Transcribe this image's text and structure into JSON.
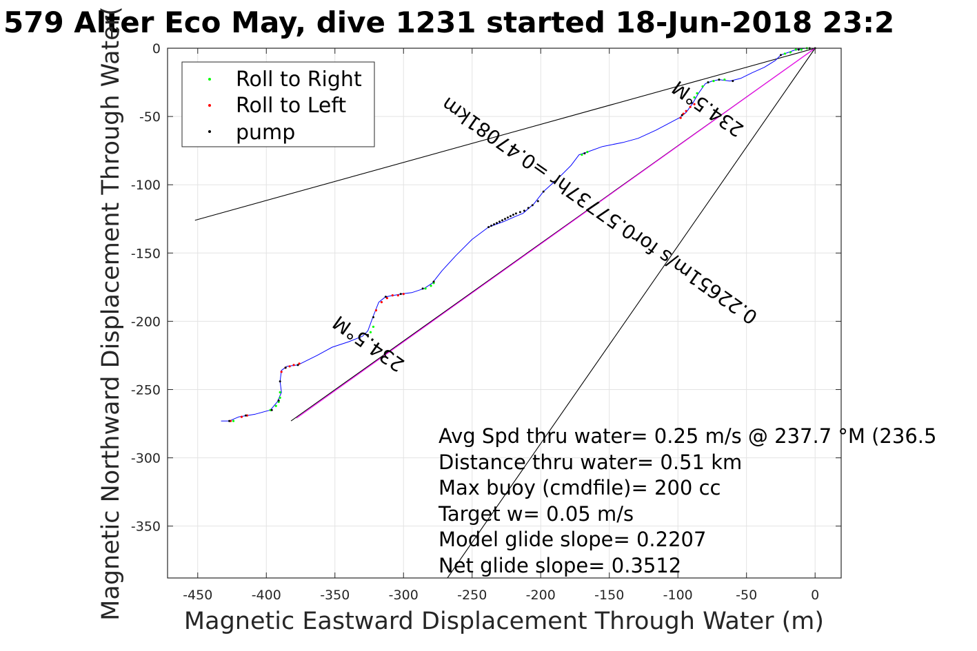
{
  "chart_data": {
    "type": "scatter",
    "title": "579 Alter Eco May, dive 1231 started 18-Jun-2018 23:2",
    "xlabel": "Magnetic Eastward Displacement Through Water (m)",
    "ylabel": "Magnetic Northward Displacement Through Water(",
    "xlim": [
      -472,
      19
    ],
    "ylim": [
      -388,
      0
    ],
    "xticks": [
      -450,
      -400,
      -350,
      -300,
      -250,
      -200,
      -150,
      -100,
      -50,
      0
    ],
    "yticks": [
      0,
      -50,
      -100,
      -150,
      -200,
      -250,
      -300,
      -350
    ],
    "grid": true,
    "legend": {
      "placement": "top-left",
      "entries": [
        {
          "name": "Roll to Right",
          "color": "#00ff00"
        },
        {
          "name": "Roll to Left",
          "color": "#ff0000"
        },
        {
          "name": "pump",
          "color": "#000000"
        }
      ]
    },
    "track": {
      "name": "track",
      "color": "#0000ff",
      "points": [
        [
          -433,
          -273
        ],
        [
          -427,
          -273
        ],
        [
          -420,
          -270
        ],
        [
          -408,
          -268
        ],
        [
          -397,
          -265
        ],
        [
          -392,
          -259
        ],
        [
          -389,
          -252
        ],
        [
          -390,
          -244
        ],
        [
          -389,
          -236
        ],
        [
          -385,
          -233
        ],
        [
          -377,
          -232
        ],
        [
          -375,
          -231
        ],
        [
          -363,
          -225
        ],
        [
          -352,
          -219
        ],
        [
          -340,
          -215
        ],
        [
          -330,
          -211
        ],
        [
          -326,
          -207
        ],
        [
          -322,
          -196
        ],
        [
          -318,
          -186
        ],
        [
          -313,
          -182
        ],
        [
          -307,
          -181
        ],
        [
          -302,
          -180
        ],
        [
          -294,
          -179
        ],
        [
          -285,
          -176
        ],
        [
          -279,
          -172
        ],
        [
          -272,
          -163
        ],
        [
          -262,
          -152
        ],
        [
          -250,
          -140
        ],
        [
          -238,
          -131
        ],
        [
          -227,
          -127
        ],
        [
          -218,
          -123
        ],
        [
          -213,
          -121
        ],
        [
          -205,
          -114
        ],
        [
          -198,
          -105
        ],
        [
          -187,
          -95
        ],
        [
          -178,
          -86
        ],
        [
          -172,
          -78
        ],
        [
          -166,
          -76
        ],
        [
          -155,
          -72
        ],
        [
          -140,
          -69
        ],
        [
          -129,
          -66
        ],
        [
          -116,
          -60
        ],
        [
          -99,
          -51
        ],
        [
          -94,
          -47
        ],
        [
          -89,
          -40
        ],
        [
          -85,
          -33
        ],
        [
          -80,
          -26
        ],
        [
          -75,
          -24
        ],
        [
          -70,
          -23
        ],
        [
          -62,
          -24
        ],
        [
          -54,
          -22
        ],
        [
          -46,
          -18
        ],
        [
          -37,
          -14
        ],
        [
          -29,
          -9
        ],
        [
          -25,
          -5
        ],
        [
          -22,
          -4
        ],
        [
          -14,
          -1
        ],
        [
          -7,
          0
        ],
        [
          0,
          0
        ]
      ]
    },
    "roll_right": [
      [
        -424,
        -273
      ],
      [
        -397,
        -265
      ],
      [
        -393,
        -262
      ],
      [
        -391,
        -259
      ],
      [
        -390,
        -256
      ],
      [
        -390,
        -252
      ],
      [
        -324,
        -208
      ],
      [
        -322,
        -204
      ],
      [
        -284,
        -176
      ],
      [
        -280,
        -174
      ],
      [
        -278,
        -172
      ],
      [
        -170,
        -78
      ],
      [
        -166,
        -76
      ],
      [
        -88,
        -36
      ],
      [
        -86,
        -33
      ],
      [
        -82,
        -28
      ],
      [
        -78,
        -25
      ],
      [
        -74,
        -24
      ],
      [
        -70,
        -23
      ],
      [
        -66,
        -23
      ],
      [
        -22,
        -4
      ],
      [
        -18,
        -3
      ],
      [
        -14,
        -1
      ],
      [
        -10,
        -1
      ],
      [
        -6,
        0
      ]
    ],
    "roll_left": [
      [
        -426,
        -273
      ],
      [
        -418,
        -270
      ],
      [
        -414,
        -269
      ],
      [
        -389,
        -237
      ],
      [
        -386,
        -234
      ],
      [
        -383,
        -233
      ],
      [
        -380,
        -232
      ],
      [
        -376,
        -231
      ],
      [
        -320,
        -192
      ],
      [
        -316,
        -186
      ],
      [
        -312,
        -183
      ],
      [
        -308,
        -181
      ],
      [
        -304,
        -181
      ],
      [
        -300,
        -180
      ],
      [
        -98,
        -51
      ],
      [
        -96,
        -48
      ],
      [
        -94,
        -46
      ],
      [
        -91,
        -43
      ],
      [
        -88,
        -41
      ]
    ],
    "pump": [
      [
        -427,
        -273
      ],
      [
        -415,
        -269
      ],
      [
        -396,
        -265
      ],
      [
        -391,
        -258
      ],
      [
        -390,
        -244
      ],
      [
        -386,
        -234
      ],
      [
        -377,
        -232
      ],
      [
        -326,
        -210
      ],
      [
        -322,
        -197
      ],
      [
        -313,
        -182
      ],
      [
        -302,
        -180
      ],
      [
        -286,
        -176
      ],
      [
        -278,
        -171
      ],
      [
        -238,
        -131
      ],
      [
        -236,
        -130
      ],
      [
        -234,
        -129
      ],
      [
        -232,
        -128
      ],
      [
        -230,
        -127
      ],
      [
        -228,
        -126
      ],
      [
        -226,
        -125
      ],
      [
        -224,
        -124
      ],
      [
        -222,
        -123
      ],
      [
        -220,
        -122
      ],
      [
        -218,
        -121
      ],
      [
        -215,
        -120
      ],
      [
        -212,
        -119
      ],
      [
        -209,
        -117
      ],
      [
        -206,
        -115
      ],
      [
        -202,
        -112
      ],
      [
        -198,
        -105
      ],
      [
        -168,
        -77
      ],
      [
        -97,
        -49
      ],
      [
        -90,
        -40
      ],
      [
        -78,
        -25
      ],
      [
        -70,
        -23
      ],
      [
        -60,
        -24
      ],
      [
        -25,
        -5
      ],
      [
        -12,
        -1
      ],
      [
        -4,
        0
      ],
      [
        0,
        0
      ]
    ],
    "lines": [
      {
        "name": "upper-heading-line",
        "color": "#000000",
        "x": [
          -452,
          0
        ],
        "y": [
          -126,
          0
        ]
      },
      {
        "name": "lower-heading-line",
        "color": "#000000",
        "x": [
          -268,
          0
        ],
        "y": [
          -388,
          0
        ]
      },
      {
        "name": "net-displacement-line",
        "color": "#000000",
        "x": [
          -382,
          0
        ],
        "y": [
          -273,
          0
        ]
      },
      {
        "name": "model-displacement-line",
        "color": "#ff00ff",
        "x": [
          -378,
          0
        ],
        "y": [
          -271,
          0
        ]
      }
    ],
    "annotations": {
      "heading_upper": "234.5°M",
      "heading_mid": "0.22651m/s for0.57737hr =0.47081km",
      "heading_lower": "234.5°M",
      "info_lines": [
        "Avg Spd thru water=  0.25 m/s @ 237.7 °M (236.5",
        "Distance thru water=  0.51 km",
        "Max buoy (cmdfile)= 200 cc",
        "Target w= 0.05 m/s",
        "Model glide slope= 0.2207",
        "Net glide slope= 0.3512"
      ]
    }
  }
}
